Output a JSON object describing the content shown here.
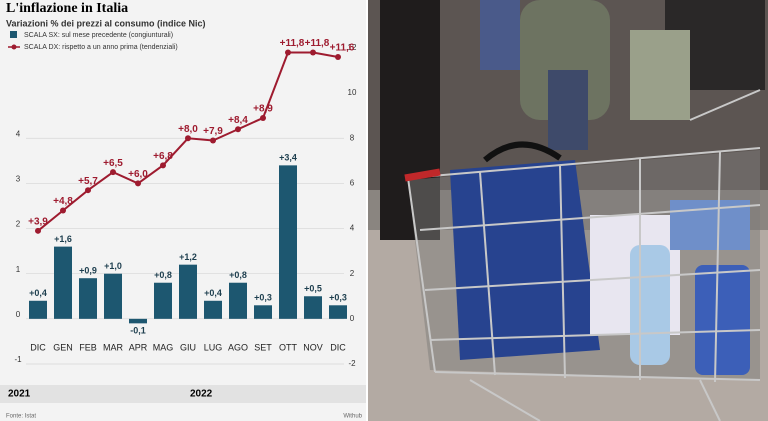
{
  "chart_data": {
    "type": "bar-line",
    "title": "L'inflazione in Italia",
    "subtitle": "Variazioni % dei prezzi al consumo (indice Nic)",
    "categories": [
      "DIC",
      "GEN",
      "FEB",
      "MAR",
      "APR",
      "MAG",
      "GIU",
      "LUG",
      "AGO",
      "SET",
      "OTT",
      "NOV",
      "DIC"
    ],
    "years": [
      "2021",
      "2022"
    ],
    "series": [
      {
        "name": "SCALA SX: sul mese precedente (congiunturali)",
        "type": "bar",
        "color": "#1d5770",
        "values": [
          0.4,
          1.6,
          0.9,
          1.0,
          -0.1,
          0.8,
          1.2,
          0.4,
          0.8,
          0.3,
          3.4,
          0.5,
          0.3
        ],
        "value_labels": [
          "+0,4",
          "+1,6",
          "+0,9",
          "+1,0",
          "-0,1",
          "+0,8",
          "+1,2",
          "+0,4",
          "+0,8",
          "+0,3",
          "+3,4",
          "+0,5",
          "+0,3"
        ]
      },
      {
        "name": "SCALA DX: rispetto a un anno prima (tendenziali)",
        "type": "line",
        "axis": "y2",
        "color": "#9e1b2f",
        "values": [
          3.9,
          4.8,
          5.7,
          6.5,
          6.0,
          6.8,
          8.0,
          7.9,
          8.4,
          8.9,
          11.8,
          11.8,
          11.6
        ],
        "value_labels": [
          "+3,9",
          "+4,8",
          "+5,7",
          "+6,5",
          "+6,0",
          "+6,8",
          "+8,0",
          "+7,9",
          "+8,4",
          "+8,9",
          "+11,8",
          "+11,8",
          "+11,6"
        ]
      }
    ],
    "ylim": [
      -1.2,
      6
    ],
    "yticks": [
      -1,
      0,
      1,
      2,
      3,
      4
    ],
    "y2lim": [
      -2.4,
      12
    ],
    "y2ticks": [
      -2,
      0,
      2,
      4,
      6,
      8,
      10,
      12
    ],
    "grid": true,
    "source": "Fonte: Istat",
    "credit": "Withub"
  }
}
